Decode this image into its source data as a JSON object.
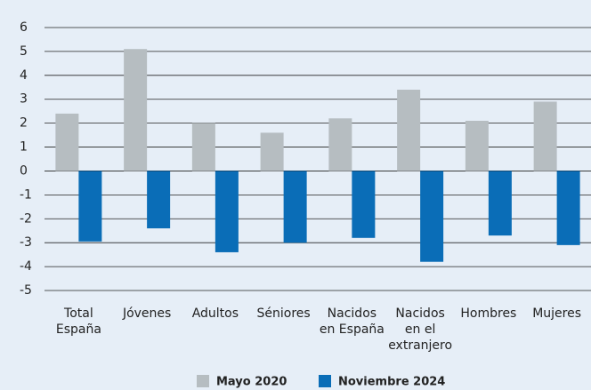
{
  "chart_data": {
    "type": "bar",
    "categories": [
      "Total\nEspaña",
      "Jóvenes",
      "Adultos",
      "Séniores",
      "Nacidos\nen España",
      "Nacidos\nen el\nextranjero",
      "Hombres",
      "Mujeres"
    ],
    "series": [
      {
        "name": "Mayo 2020",
        "color": "#b6bdc1",
        "values": [
          2.4,
          5.1,
          2.0,
          1.6,
          2.2,
          3.4,
          2.1,
          2.9
        ]
      },
      {
        "name": "Noviembre 2024",
        "color": "#0a6db7",
        "values": [
          -2.95,
          -2.4,
          -3.4,
          -3.0,
          -2.8,
          -3.8,
          -2.7,
          -3.1
        ]
      }
    ],
    "ylim": [
      -5,
      6
    ],
    "yticks": [
      -5,
      -4,
      -3,
      -2,
      -1,
      0,
      1,
      2,
      3,
      4,
      5,
      6
    ],
    "grid": true,
    "legend": "bottom"
  }
}
